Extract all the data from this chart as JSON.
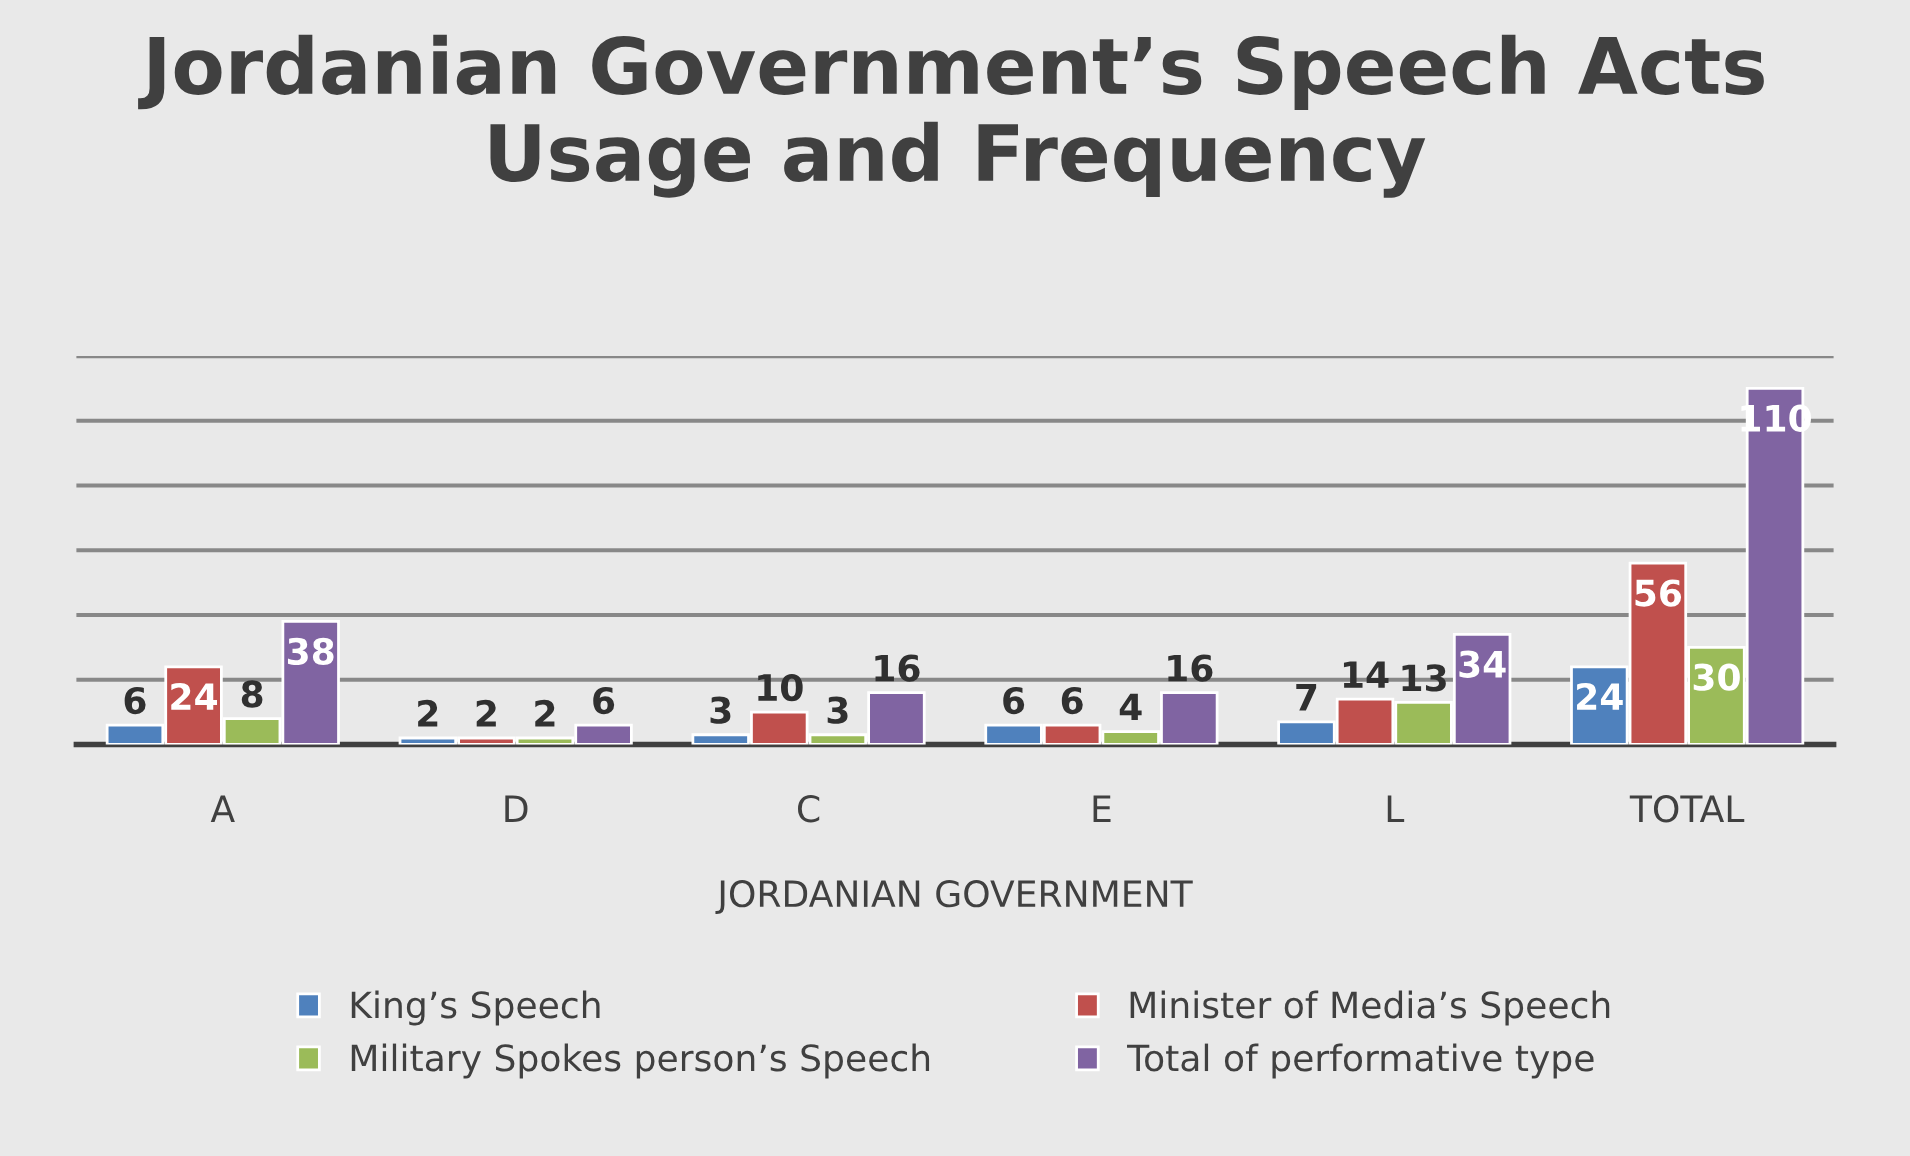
{
  "chart_data": {
    "type": "bar",
    "title": "Jordanian Government’s Speech Acts\nUsage and Frequency",
    "xlabel": "JORDANIAN GOVERNMENT",
    "categories": [
      "A",
      "D",
      "C",
      "E",
      "L",
      "TOTAL"
    ],
    "series": [
      {
        "name": "King’s Speech",
        "color": "#4f81bd",
        "values": [
          6,
          2,
          3,
          6,
          7,
          24
        ]
      },
      {
        "name": "Minister of Media’s Speech",
        "color": "#c0504d",
        "values": [
          24,
          2,
          10,
          6,
          14,
          56
        ]
      },
      {
        "name": "Military Spokes person’s Speech",
        "color": "#9bbb59",
        "values": [
          8,
          2,
          3,
          4,
          13,
          30
        ]
      },
      {
        "name": "Total of performative type",
        "color": "#8064a2",
        "values": [
          38,
          6,
          16,
          16,
          34,
          110
        ]
      }
    ],
    "ylim": [
      0,
      120
    ],
    "yticks": [
      {
        "value": 0,
        "label": null
      },
      {
        "value": 20,
        "label": null
      },
      {
        "value": 40,
        "label": null
      },
      {
        "value": 60,
        "label": null
      },
      {
        "value": 80,
        "label": null
      },
      {
        "value": 100,
        "label": null
      },
      {
        "value": 120,
        "label": null
      }
    ],
    "tick_labels": "x",
    "grid": "y",
    "legend": "bottom",
    "data_labels": true
  }
}
